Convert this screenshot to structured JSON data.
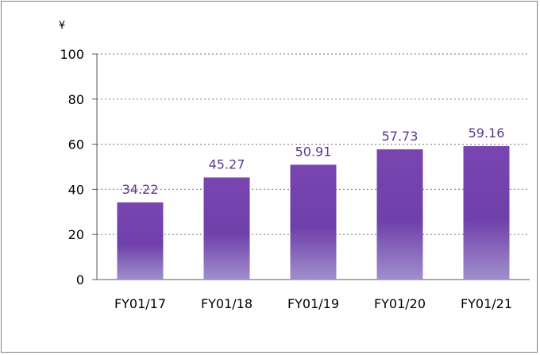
{
  "chart_data": {
    "type": "bar",
    "unit_label": "¥",
    "categories": [
      "FY01/17",
      "FY01/18",
      "FY01/19",
      "FY01/20",
      "FY01/21"
    ],
    "values": [
      34.22,
      45.27,
      50.91,
      57.73,
      59.16
    ],
    "value_labels": [
      "34.22",
      "45.27",
      "50.91",
      "57.73",
      "59.16"
    ],
    "ylim": [
      0,
      100
    ],
    "yticks": [
      0,
      20,
      40,
      60,
      80,
      100
    ],
    "grid": true,
    "bar_color_top": "#7a45b0",
    "bar_color_bottom": "#a08fcc",
    "label_color": "#5b3a8c"
  }
}
